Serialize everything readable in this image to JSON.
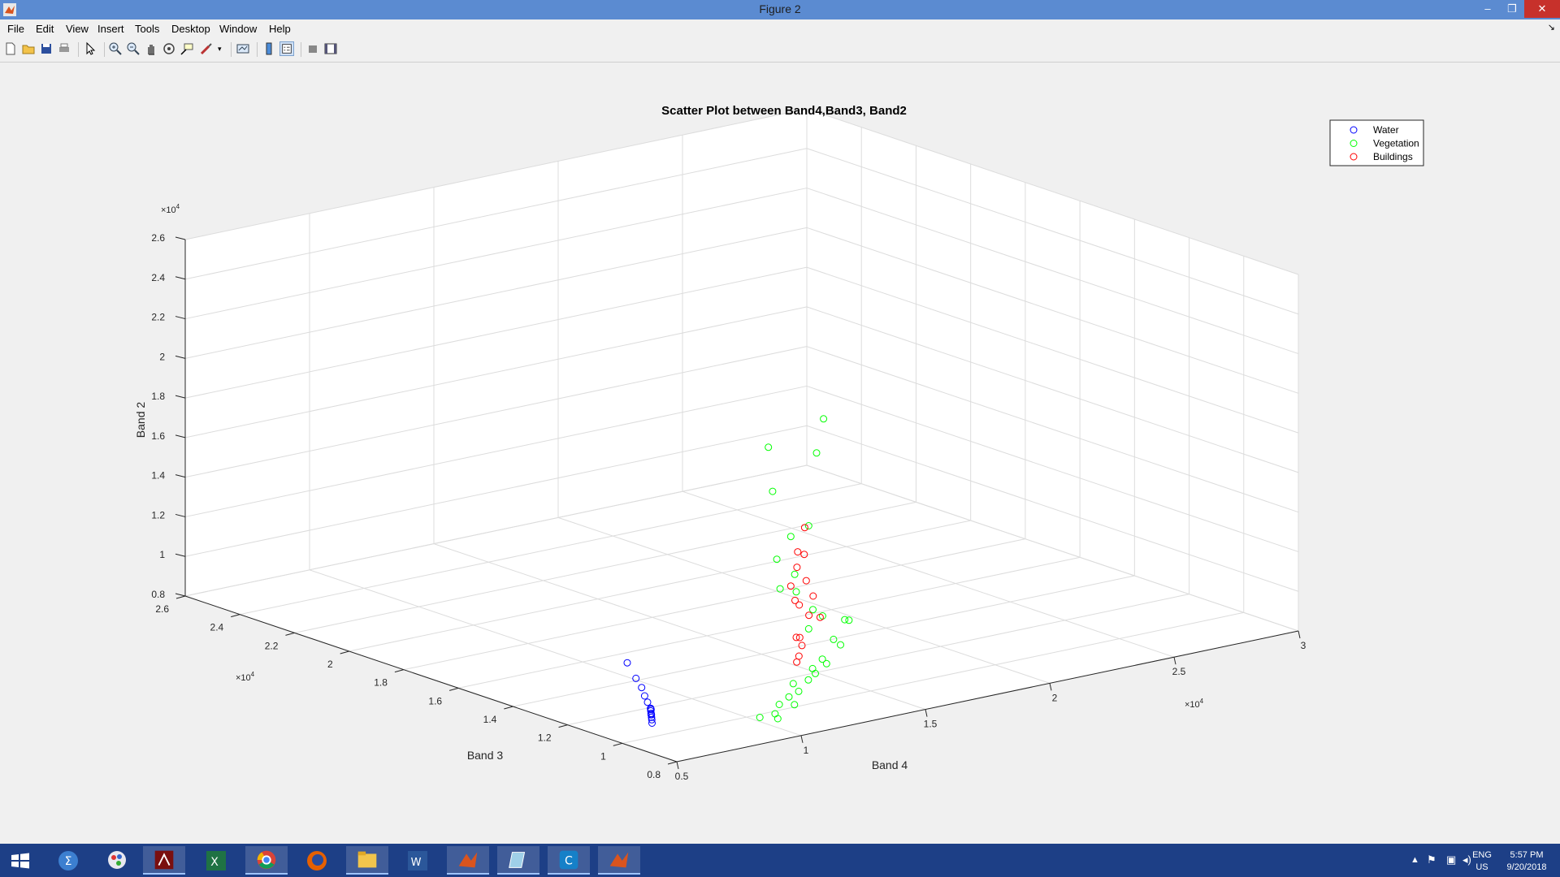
{
  "window": {
    "title": "Figure 2",
    "minimize": "–",
    "restore": "❐",
    "close": "✕"
  },
  "menu": [
    "File",
    "Edit",
    "View",
    "Insert",
    "Tools",
    "Desktop",
    "Window",
    "Help"
  ],
  "toolbar_icons": [
    "new-figure-icon",
    "open-file-icon",
    "save-icon",
    "print-icon",
    "edit-plot-icon",
    "zoom-in-icon",
    "zoom-out-icon",
    "pan-icon",
    "rotate-3d-icon",
    "data-cursor-icon",
    "brush-icon",
    "link-plot-icon",
    "colorbar-icon",
    "legend-icon",
    "hide-plot-tools-icon",
    "show-plot-tools-icon"
  ],
  "colors": {
    "water": "#0000ff",
    "vegetation": "#00ff00",
    "buildings": "#ff0000",
    "grid": "#dcdcdc",
    "axes_bg": "#ffffff"
  },
  "chart_data": {
    "type": "scatter",
    "title": "Scatter Plot between Band4,Band3, Band2",
    "axes": {
      "x": {
        "label": "Band 4",
        "range": [
          5000,
          30000
        ],
        "ticks": [
          5000,
          10000,
          15000,
          20000,
          25000,
          30000
        ],
        "tick_labels": [
          "0.5",
          "1",
          "1.5",
          "2",
          "2.5",
          "3"
        ],
        "exponent": "×10^4"
      },
      "y": {
        "label": "Band 3",
        "range": [
          8000,
          26000
        ],
        "ticks": [
          8000,
          10000,
          12000,
          14000,
          16000,
          18000,
          20000,
          22000,
          24000,
          26000
        ],
        "tick_labels": [
          "0.8",
          "1",
          "1.2",
          "1.4",
          "1.6",
          "1.8",
          "2",
          "2.2",
          "2.4",
          "2.6"
        ],
        "exponent": "×10^4"
      },
      "z": {
        "label": "Band 2",
        "range": [
          8000,
          26000
        ],
        "ticks": [
          8000,
          10000,
          12000,
          14000,
          16000,
          18000,
          20000,
          22000,
          24000,
          26000
        ],
        "tick_labels": [
          "0.8",
          "1",
          "1.2",
          "1.4",
          "1.6",
          "1.8",
          "2",
          "2.2",
          "2.4",
          "2.6"
        ],
        "exponent": "×10^4"
      }
    },
    "grid": true,
    "legend_position": "top-right",
    "series": [
      {
        "name": "Water",
        "color": "#0000ff",
        "marker": "o",
        "points": [
          [
            6600,
            10400,
            8900
          ],
          [
            6400,
            10200,
            8850
          ],
          [
            6800,
            10600,
            9000
          ],
          [
            6300,
            10100,
            8800
          ],
          [
            6700,
            10500,
            8950
          ],
          [
            6500,
            10300,
            8900
          ],
          [
            7000,
            11000,
            9400
          ],
          [
            7200,
            11500,
            10000
          ],
          [
            6900,
            10800,
            9200
          ],
          [
            7400,
            12000,
            10500
          ],
          [
            6200,
            10000,
            8700
          ],
          [
            6600,
            10400,
            9100
          ],
          [
            6450,
            10250,
            8950
          ],
          [
            6750,
            10550,
            9050
          ],
          [
            6550,
            10350,
            8880
          ],
          [
            7100,
            11200,
            9700
          ]
        ]
      },
      {
        "name": "Vegetation",
        "color": "#00ff00",
        "marker": "o",
        "points": [
          [
            12000,
            9000,
            23000
          ],
          [
            10000,
            9200,
            22000
          ],
          [
            11500,
            8800,
            21500
          ],
          [
            10500,
            9500,
            19500
          ],
          [
            12500,
            10000,
            17000
          ],
          [
            12000,
            10200,
            16500
          ],
          [
            11000,
            9800,
            15800
          ],
          [
            11500,
            9600,
            15000
          ],
          [
            10800,
            9500,
            14500
          ],
          [
            12000,
            10000,
            13800
          ],
          [
            11000,
            9000,
            9500
          ],
          [
            10000,
            8800,
            9200
          ],
          [
            9500,
            8500,
            9000
          ],
          [
            12500,
            9500,
            10500
          ],
          [
            13500,
            10000,
            11000
          ],
          [
            14000,
            10200,
            10500
          ],
          [
            13000,
            9800,
            10000
          ],
          [
            11000,
            9200,
            9800
          ],
          [
            10500,
            8900,
            9400
          ],
          [
            12000,
            9400,
            10200
          ],
          [
            11500,
            9100,
            9900
          ],
          [
            14500,
            10500,
            11500
          ],
          [
            15000,
            10800,
            11200
          ],
          [
            13500,
            10400,
            12000
          ],
          [
            12500,
            10000,
            11800
          ],
          [
            13000,
            10300,
            12500
          ],
          [
            9000,
            8600,
            8900
          ],
          [
            9500,
            8400,
            8800
          ],
          [
            10500,
            8700,
            9100
          ],
          [
            12000,
            9300,
            10000
          ]
        ]
      },
      {
        "name": "Buildings",
        "color": "#ff0000",
        "marker": "o",
        "points": [
          [
            13000,
            10600,
            16500
          ],
          [
            12500,
            10400,
            15500
          ],
          [
            13200,
            10800,
            15000
          ],
          [
            12800,
            10700,
            14500
          ],
          [
            12000,
            10200,
            14000
          ],
          [
            13500,
            11000,
            13500
          ],
          [
            12500,
            10500,
            13000
          ],
          [
            13000,
            10800,
            12500
          ],
          [
            14000,
            11200,
            12500
          ],
          [
            12000,
            10000,
            11500
          ],
          [
            13500,
            10900,
            11800
          ],
          [
            12800,
            10600,
            11000
          ],
          [
            13000,
            10700,
            10500
          ],
          [
            14500,
            11400,
            11200
          ],
          [
            12000,
            9900,
            10600
          ],
          [
            11800,
            9800,
            10400
          ]
        ]
      }
    ]
  }
}
